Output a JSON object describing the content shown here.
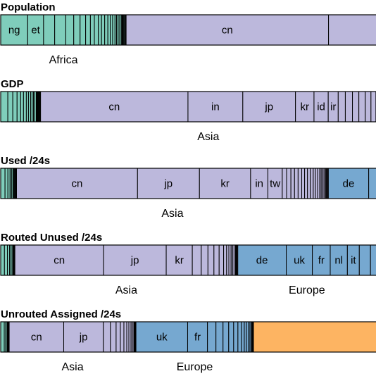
{
  "colors": {
    "Africa": "#7fcdbb",
    "Asia": "#bcb8dc",
    "Europe": "#76a8d0",
    "Other": "#fdb462",
    "divider": "#000000"
  },
  "chart_data": [
    {
      "type": "bar",
      "title": "Population",
      "segments": [
        {
          "label": "ng",
          "group": "Africa",
          "value": 34
        },
        {
          "label": "et",
          "group": "Africa",
          "value": 20
        },
        {
          "label": "",
          "group": "Africa",
          "value": 14
        },
        {
          "label": "",
          "group": "Africa",
          "value": 14
        },
        {
          "label": "",
          "group": "Africa",
          "value": 10
        },
        {
          "label": "",
          "group": "Africa",
          "value": 8
        },
        {
          "label": "",
          "group": "Africa",
          "value": 7
        },
        {
          "label": "",
          "group": "Africa",
          "value": 6
        },
        {
          "label": "",
          "group": "Africa",
          "value": 5
        },
        {
          "label": "",
          "group": "Africa",
          "value": 5
        },
        {
          "label": "",
          "group": "Africa",
          "value": 4
        },
        {
          "label": "",
          "group": "Africa",
          "value": 4
        },
        {
          "label": "",
          "group": "Africa",
          "value": 4
        },
        {
          "label": "",
          "group": "Africa",
          "value": 3
        },
        {
          "label": "",
          "group": "Africa",
          "value": 3
        },
        {
          "label": "",
          "group": "Africa",
          "value": 3
        },
        {
          "label": "",
          "group": "Africa",
          "value": 2
        },
        {
          "label": "",
          "group": "Africa",
          "value": 2
        },
        {
          "label": "",
          "group": "Africa",
          "value": 2
        },
        {
          "label": "",
          "group": "Africa",
          "value": 2
        },
        {
          "label": "",
          "group": "Africa",
          "value": 1
        },
        {
          "label": "",
          "group": "Africa",
          "value": 1
        },
        {
          "label": "",
          "group": "Africa",
          "value": 1
        },
        {
          "label": "",
          "group": "Africa",
          "value": 1
        },
        {
          "label": "",
          "group": "Africa",
          "value": 1
        },
        {
          "label": "",
          "group": "Africa",
          "value": 1
        },
        {
          "label": "cn",
          "group": "Asia",
          "value": 255
        },
        {
          "label": "",
          "group": "Asia",
          "value": 66
        }
      ],
      "group_labels": [
        {
          "text": "Africa",
          "group": "Africa"
        }
      ]
    },
    {
      "type": "bar",
      "title": "GDP",
      "segments": [
        {
          "label": "",
          "group": "Africa",
          "value": 10
        },
        {
          "label": "",
          "group": "Africa",
          "value": 7
        },
        {
          "label": "",
          "group": "Africa",
          "value": 6
        },
        {
          "label": "",
          "group": "Africa",
          "value": 5
        },
        {
          "label": "",
          "group": "Africa",
          "value": 4
        },
        {
          "label": "",
          "group": "Africa",
          "value": 4
        },
        {
          "label": "",
          "group": "Africa",
          "value": 3
        },
        {
          "label": "",
          "group": "Africa",
          "value": 3
        },
        {
          "label": "",
          "group": "Africa",
          "value": 2
        },
        {
          "label": "",
          "group": "Africa",
          "value": 2
        },
        {
          "label": "",
          "group": "Africa",
          "value": 2
        },
        {
          "label": "",
          "group": "Africa",
          "value": 2
        },
        {
          "label": "",
          "group": "Africa",
          "value": 1
        },
        {
          "label": "",
          "group": "Africa",
          "value": 1
        },
        {
          "label": "",
          "group": "Africa",
          "value": 1
        },
        {
          "label": "",
          "group": "Africa",
          "value": 1
        },
        {
          "label": "",
          "group": "Africa",
          "value": 1
        },
        {
          "label": "",
          "group": "Africa",
          "value": 1
        },
        {
          "label": "cn",
          "group": "Asia",
          "value": 207
        },
        {
          "label": "in",
          "group": "Asia",
          "value": 77
        },
        {
          "label": "jp",
          "group": "Asia",
          "value": 74
        },
        {
          "label": "kr",
          "group": "Asia",
          "value": 26
        },
        {
          "label": "id",
          "group": "Asia",
          "value": 20
        },
        {
          "label": "ir",
          "group": "Asia",
          "value": 14
        },
        {
          "label": "",
          "group": "Asia",
          "value": 10
        },
        {
          "label": "",
          "group": "Asia",
          "value": 10
        },
        {
          "label": "",
          "group": "Asia",
          "value": 9
        },
        {
          "label": "",
          "group": "Asia",
          "value": 9
        },
        {
          "label": "",
          "group": "Asia",
          "value": 8
        },
        {
          "label": "",
          "group": "Asia",
          "value": 7
        },
        {
          "label": "",
          "group": "Asia",
          "value": 7
        }
      ],
      "group_labels": [
        {
          "text": "Asia",
          "group": "Asia"
        }
      ]
    },
    {
      "type": "bar",
      "title": "Used /24s",
      "segments": [
        {
          "label": "",
          "group": "Africa",
          "value": 6
        },
        {
          "label": "",
          "group": "Africa",
          "value": 4
        },
        {
          "label": "",
          "group": "Africa",
          "value": 3
        },
        {
          "label": "",
          "group": "Africa",
          "value": 2
        },
        {
          "label": "",
          "group": "Africa",
          "value": 2
        },
        {
          "label": "",
          "group": "Africa",
          "value": 1
        },
        {
          "label": "",
          "group": "Africa",
          "value": 1
        },
        {
          "label": "",
          "group": "Africa",
          "value": 1
        },
        {
          "label": "",
          "group": "Africa",
          "value": 1
        },
        {
          "label": "",
          "group": "Africa",
          "value": 1
        },
        {
          "label": "cn",
          "group": "Asia",
          "value": 168
        },
        {
          "label": "jp",
          "group": "Asia",
          "value": 86
        },
        {
          "label": "kr",
          "group": "Asia",
          "value": 71
        },
        {
          "label": "in",
          "group": "Asia",
          "value": 24
        },
        {
          "label": "tw",
          "group": "Asia",
          "value": 20
        },
        {
          "label": "",
          "group": "Asia",
          "value": 6
        },
        {
          "label": "",
          "group": "Asia",
          "value": 6
        },
        {
          "label": "",
          "group": "Asia",
          "value": 5
        },
        {
          "label": "",
          "group": "Asia",
          "value": 5
        },
        {
          "label": "",
          "group": "Asia",
          "value": 5
        },
        {
          "label": "",
          "group": "Asia",
          "value": 4
        },
        {
          "label": "",
          "group": "Asia",
          "value": 4
        },
        {
          "label": "",
          "group": "Asia",
          "value": 4
        },
        {
          "label": "",
          "group": "Asia",
          "value": 4
        },
        {
          "label": "",
          "group": "Asia",
          "value": 3
        },
        {
          "label": "",
          "group": "Asia",
          "value": 3
        },
        {
          "label": "",
          "group": "Asia",
          "value": 3
        },
        {
          "label": "",
          "group": "Asia",
          "value": 2
        },
        {
          "label": "",
          "group": "Asia",
          "value": 2
        },
        {
          "label": "",
          "group": "Asia",
          "value": 2
        },
        {
          "label": "",
          "group": "Asia",
          "value": 2
        },
        {
          "label": "",
          "group": "Asia",
          "value": 1
        },
        {
          "label": "",
          "group": "Asia",
          "value": 1
        },
        {
          "label": "",
          "group": "Asia",
          "value": 1
        },
        {
          "label": "",
          "group": "Asia",
          "value": 1
        },
        {
          "label": "de",
          "group": "Europe",
          "value": 56
        },
        {
          "label": "",
          "group": "Europe",
          "value": 17
        }
      ],
      "group_labels": [
        {
          "text": "Asia",
          "group": "Asia"
        }
      ]
    },
    {
      "type": "bar",
      "title": "Routed Unused /24s",
      "segments": [
        {
          "label": "",
          "group": "Africa",
          "value": 5
        },
        {
          "label": "",
          "group": "Africa",
          "value": 4
        },
        {
          "label": "",
          "group": "Africa",
          "value": 3
        },
        {
          "label": "",
          "group": "Africa",
          "value": 2
        },
        {
          "label": "",
          "group": "Africa",
          "value": 2
        },
        {
          "label": "",
          "group": "Africa",
          "value": 1
        },
        {
          "label": "",
          "group": "Africa",
          "value": 1
        },
        {
          "label": "",
          "group": "Africa",
          "value": 1
        },
        {
          "label": "cn",
          "group": "Asia",
          "value": 119
        },
        {
          "label": "jp",
          "group": "Asia",
          "value": 84
        },
        {
          "label": "kr",
          "group": "Asia",
          "value": 35
        },
        {
          "label": "",
          "group": "Asia",
          "value": 12
        },
        {
          "label": "",
          "group": "Asia",
          "value": 9
        },
        {
          "label": "",
          "group": "Asia",
          "value": 8
        },
        {
          "label": "",
          "group": "Asia",
          "value": 7
        },
        {
          "label": "",
          "group": "Asia",
          "value": 6
        },
        {
          "label": "",
          "group": "Asia",
          "value": 4
        },
        {
          "label": "",
          "group": "Asia",
          "value": 3
        },
        {
          "label": "",
          "group": "Asia",
          "value": 3
        },
        {
          "label": "",
          "group": "Asia",
          "value": 2
        },
        {
          "label": "",
          "group": "Asia",
          "value": 2
        },
        {
          "label": "",
          "group": "Asia",
          "value": 2
        },
        {
          "label": "",
          "group": "Asia",
          "value": 1
        },
        {
          "label": "",
          "group": "Asia",
          "value": 1
        },
        {
          "label": "",
          "group": "Asia",
          "value": 1
        },
        {
          "label": "de",
          "group": "Europe",
          "value": 65
        },
        {
          "label": "uk",
          "group": "Europe",
          "value": 35
        },
        {
          "label": "fr",
          "group": "Europe",
          "value": 24
        },
        {
          "label": "nl",
          "group": "Europe",
          "value": 23
        },
        {
          "label": "it",
          "group": "Europe",
          "value": 16
        },
        {
          "label": "",
          "group": "Europe",
          "value": 15
        },
        {
          "label": "",
          "group": "Europe",
          "value": 14
        }
      ],
      "group_labels": [
        {
          "text": "Asia",
          "group": "Asia"
        },
        {
          "text": "Europe",
          "group": "Europe"
        }
      ]
    },
    {
      "type": "bar",
      "title": "Unrouted Assigned /24s",
      "segments": [
        {
          "label": "",
          "group": "Africa",
          "value": 5
        },
        {
          "label": "",
          "group": "Africa",
          "value": 2
        },
        {
          "label": "",
          "group": "Africa",
          "value": 2
        },
        {
          "label": "",
          "group": "Africa",
          "value": 1
        },
        {
          "label": "",
          "group": "Africa",
          "value": 1
        },
        {
          "label": "",
          "group": "Africa",
          "value": 1
        },
        {
          "label": "cn",
          "group": "Asia",
          "value": 77
        },
        {
          "label": "jp",
          "group": "Asia",
          "value": 56
        },
        {
          "label": "",
          "group": "Asia",
          "value": 10
        },
        {
          "label": "",
          "group": "Asia",
          "value": 8
        },
        {
          "label": "",
          "group": "Asia",
          "value": 6
        },
        {
          "label": "",
          "group": "Asia",
          "value": 5
        },
        {
          "label": "",
          "group": "Asia",
          "value": 4
        },
        {
          "label": "",
          "group": "Asia",
          "value": 3
        },
        {
          "label": "",
          "group": "Asia",
          "value": 3
        },
        {
          "label": "",
          "group": "Asia",
          "value": 2
        },
        {
          "label": "",
          "group": "Asia",
          "value": 2
        },
        {
          "label": "",
          "group": "Asia",
          "value": 1
        },
        {
          "label": "",
          "group": "Asia",
          "value": 1
        },
        {
          "label": "",
          "group": "Asia",
          "value": 1
        },
        {
          "label": "uk",
          "group": "Europe",
          "value": 73
        },
        {
          "label": "fr",
          "group": "Europe",
          "value": 28
        },
        {
          "label": "",
          "group": "Europe",
          "value": 12
        },
        {
          "label": "",
          "group": "Europe",
          "value": 10
        },
        {
          "label": "",
          "group": "Europe",
          "value": 8
        },
        {
          "label": "",
          "group": "Europe",
          "value": 7
        },
        {
          "label": "",
          "group": "Europe",
          "value": 6
        },
        {
          "label": "",
          "group": "Europe",
          "value": 5
        },
        {
          "label": "",
          "group": "Europe",
          "value": 4
        },
        {
          "label": "",
          "group": "Europe",
          "value": 3
        },
        {
          "label": "",
          "group": "Europe",
          "value": 3
        },
        {
          "label": "",
          "group": "Europe",
          "value": 2
        },
        {
          "label": "",
          "group": "Europe",
          "value": 2
        },
        {
          "label": "",
          "group": "Europe",
          "value": 1
        },
        {
          "label": "",
          "group": "Europe",
          "value": 1
        },
        {
          "label": "",
          "group": "Europe",
          "value": 1
        },
        {
          "label": "",
          "group": "Other",
          "value": 180
        }
      ],
      "group_labels": [
        {
          "text": "Asia",
          "group": "Asia"
        },
        {
          "text": "Europe",
          "group": "Europe"
        }
      ]
    }
  ]
}
